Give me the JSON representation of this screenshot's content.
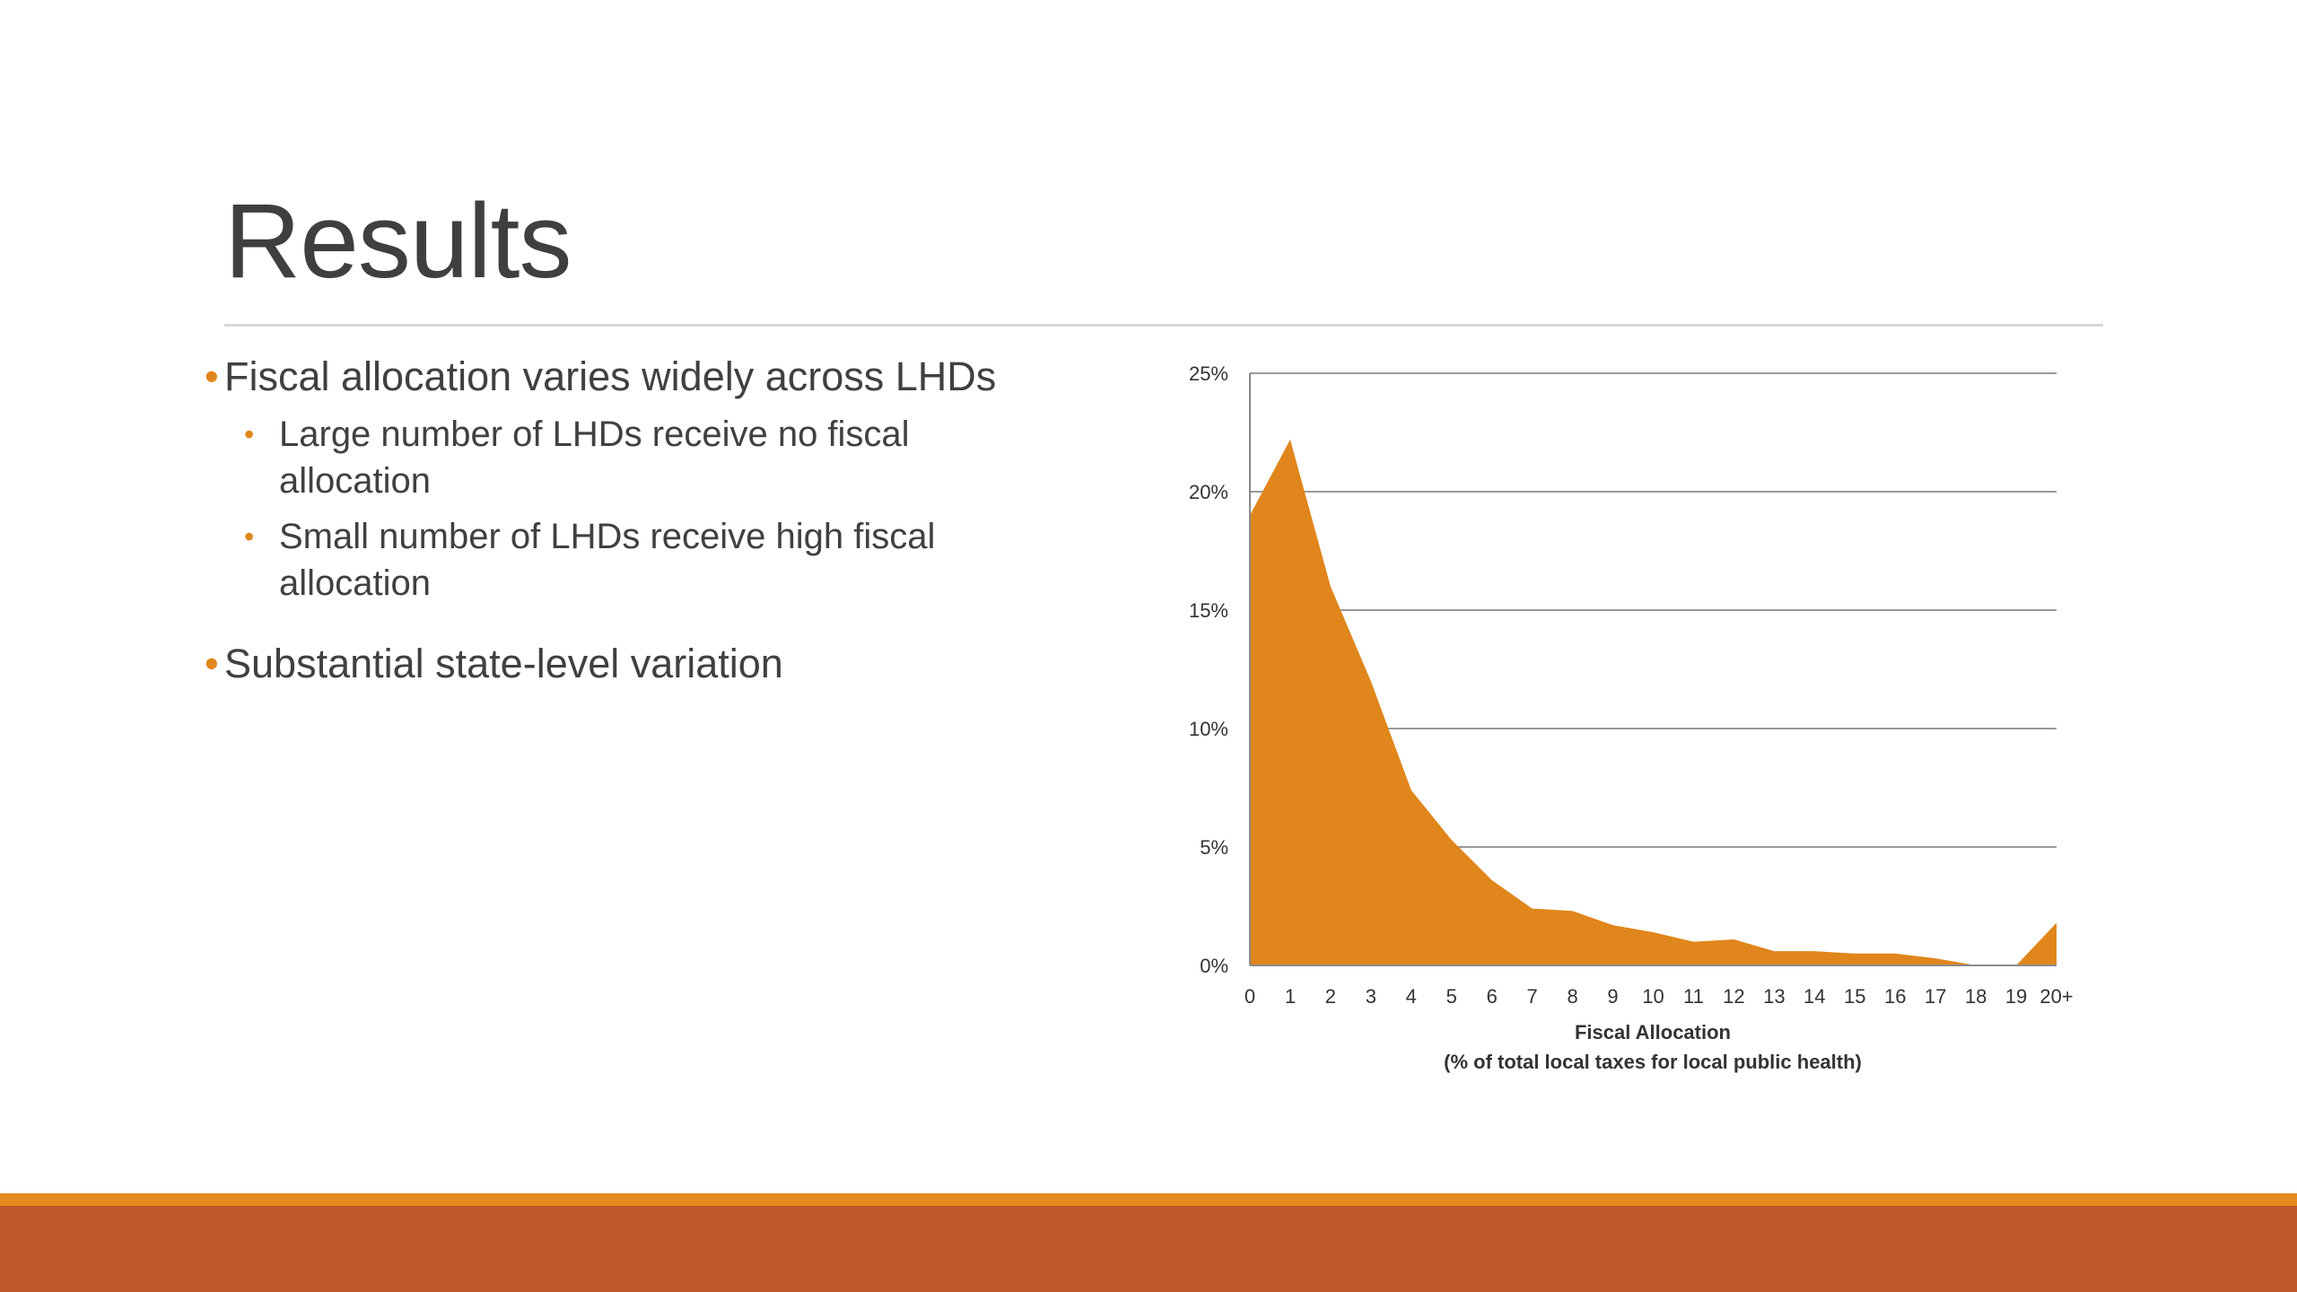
{
  "slide": {
    "title": "Results",
    "bullets": [
      {
        "text": "Fiscal allocation varies widely across LHDs",
        "sub": [
          "Large number of LHDs receive no fiscal allocation",
          "Small number of LHDs receive high fiscal allocation"
        ]
      },
      {
        "text": "Substantial state-level variation",
        "sub": []
      }
    ],
    "colors": {
      "accent": "#e0861c",
      "footer_base": "#bc582b",
      "footer_strip": "#e58a1f",
      "title_text": "#3f3f3f"
    }
  },
  "chart_data": {
    "type": "area",
    "categories": [
      "0",
      "1",
      "2",
      "3",
      "4",
      "5",
      "6",
      "7",
      "8",
      "9",
      "10",
      "11",
      "12",
      "13",
      "14",
      "15",
      "16",
      "17",
      "18",
      "19",
      "20+"
    ],
    "series": [
      {
        "color": "#e0861c",
        "values": [
          19.0,
          22.2,
          16.0,
          12.0,
          7.4,
          5.3,
          3.6,
          2.4,
          2.3,
          1.7,
          1.4,
          1.0,
          1.1,
          0.6,
          0.6,
          0.5,
          0.5,
          0.3,
          0.0,
          0.0,
          1.8
        ]
      }
    ],
    "xlabel": "Fiscal Allocation",
    "xlabel2": "(% of total local taxes for local public health)",
    "ylabel": "",
    "ylim": [
      0,
      25
    ],
    "yticks": [
      0,
      5,
      10,
      15,
      20,
      25
    ],
    "ytick_labels": [
      "0%",
      "5%",
      "10%",
      "15%",
      "20%",
      "25%"
    ],
    "grid": true,
    "legend": "none"
  }
}
